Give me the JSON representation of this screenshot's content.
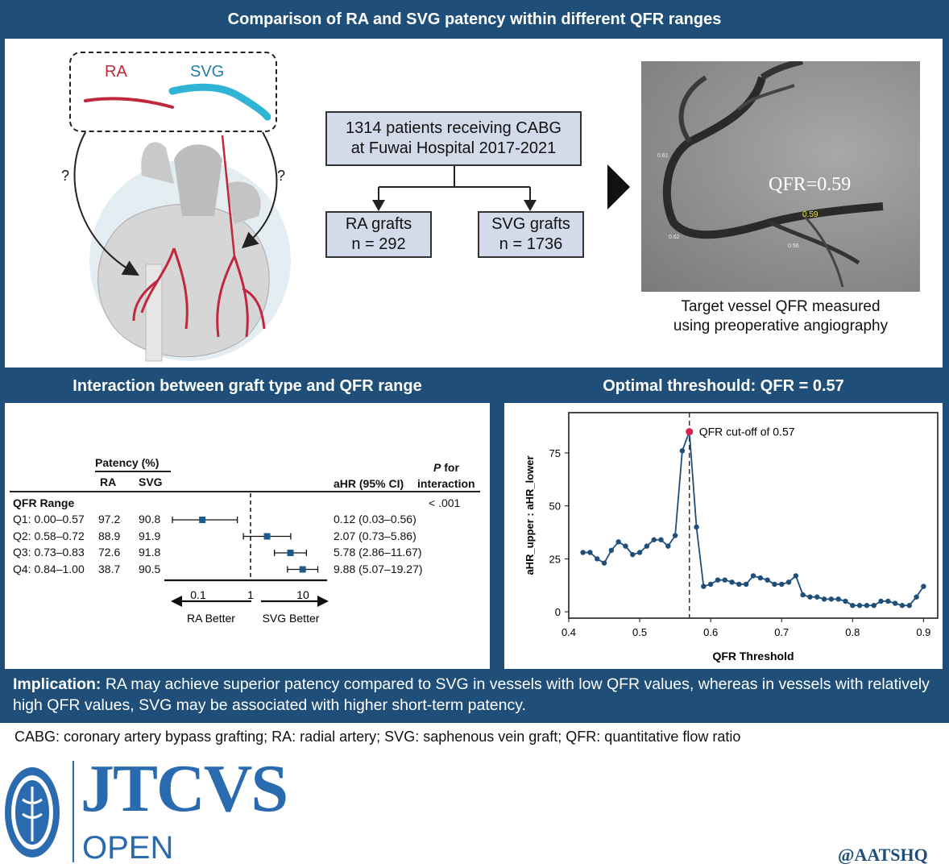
{
  "top_banner": {
    "title": "Comparison of RA and SVG patency within different QFR ranges"
  },
  "graft_legend": {
    "ra": "RA",
    "svg": "SVG",
    "question_left": "?",
    "question_right": "?"
  },
  "flowchart": {
    "root_line1": "1314 patients receiving CABG",
    "root_line2": "at Fuwai Hospital 2017-2021",
    "left_line1": "RA grafts",
    "left_line2": "n = 292",
    "right_line1": "SVG grafts",
    "right_line2": "n = 1736"
  },
  "angiogram": {
    "qfr_label": "QFR=0.59",
    "small_labels": [
      "0.59",
      "0.62",
      "0.56",
      "0.61"
    ],
    "caption_line1": "Target vessel QFR measured",
    "caption_line2": "using preoperative angiography"
  },
  "left_panel": {
    "title": "Interaction between graft type and QFR range",
    "forest": {
      "patency_header": "Patency (%)",
      "col_ra": "RA",
      "col_svg": "SVG",
      "col_ahr": "aHR (95% CI)",
      "col_p_italic": "P",
      "col_p_rest": " for",
      "col_p_line2": "interaction",
      "section": "QFR Range",
      "p_value": "< .001",
      "rows": [
        {
          "label": "Q1: 0.00–0.57",
          "ra": "97.2",
          "svg": "90.8",
          "ahr_text": "0.12 (0.03–0.56)",
          "hr": 0.12,
          "lo": 0.03,
          "hi": 0.56
        },
        {
          "label": "Q2: 0.58–0.72",
          "ra": "88.9",
          "svg": "91.9",
          "ahr_text": "2.07 (0.73–5.86)",
          "hr": 2.07,
          "lo": 0.73,
          "hi": 5.86
        },
        {
          "label": "Q3: 0.73–0.83",
          "ra": "72.6",
          "svg": "91.8",
          "ahr_text": "5.78 (2.86–11.67)",
          "hr": 5.78,
          "lo": 2.86,
          "hi": 11.67
        },
        {
          "label": "Q4: 0.84–1.00",
          "ra": "38.7",
          "svg": "90.5",
          "ahr_text": "9.88 (5.07–19.27)",
          "hr": 9.88,
          "lo": 5.07,
          "hi": 19.27
        }
      ],
      "axis_ticks": [
        {
          "value": 0.1,
          "label": "0.1"
        },
        {
          "value": 1,
          "label": "1"
        },
        {
          "value": 10,
          "label": "10"
        }
      ],
      "ra_better": "RA Better",
      "svg_better": "SVG Better"
    }
  },
  "right_panel": {
    "title": "Optimal threshould: QFR = 0.57"
  },
  "chart_data": {
    "type": "line",
    "xlabel": "QFR Threshold",
    "ylabel": "aHR_upper : aHR_lower",
    "xlim": [
      0.4,
      0.92
    ],
    "ylim": [
      -3,
      94
    ],
    "xticks": [
      0.4,
      0.5,
      0.6,
      0.7,
      0.8,
      0.9
    ],
    "xtick_labels": [
      "0.4",
      "0.5",
      "0.6",
      "0.7",
      "0.8",
      "0.9"
    ],
    "yticks": [
      0,
      25,
      50,
      75
    ],
    "ytick_labels": [
      "0",
      "25",
      "50",
      "75"
    ],
    "cutoff_x": 0.57,
    "cutoff_y": 85,
    "cutoff_label": "QFR cut-off of 0.57",
    "line_color": "#1f4e79",
    "highlight_color": "#d6204f",
    "x": [
      0.42,
      0.43,
      0.44,
      0.45,
      0.46,
      0.47,
      0.48,
      0.49,
      0.5,
      0.51,
      0.52,
      0.53,
      0.54,
      0.55,
      0.56,
      0.57,
      0.58,
      0.59,
      0.6,
      0.61,
      0.62,
      0.63,
      0.64,
      0.65,
      0.66,
      0.67,
      0.68,
      0.69,
      0.7,
      0.71,
      0.72,
      0.73,
      0.74,
      0.75,
      0.76,
      0.77,
      0.78,
      0.79,
      0.8,
      0.81,
      0.82,
      0.83,
      0.84,
      0.85,
      0.86,
      0.87,
      0.88,
      0.89,
      0.9
    ],
    "y": [
      28,
      28,
      25,
      23,
      29,
      33,
      31,
      27,
      28,
      31,
      34,
      34,
      31,
      36,
      76,
      85,
      40,
      12,
      13,
      15,
      15,
      14,
      13,
      13,
      17,
      16,
      15,
      13,
      13,
      14,
      17,
      8,
      7,
      7,
      6,
      6,
      6,
      5,
      3,
      3,
      3,
      3,
      5,
      5,
      4,
      3,
      3,
      7,
      12
    ]
  },
  "implication": {
    "label": "Implication:",
    "text": " RA may achieve superior patency compared to SVG in vessels with low QFR values, whereas in vessels with relatively high QFR values, SVG may be associated with higher short-term patency."
  },
  "footnote": "CABG: coronary artery bypass grafting; RA: radial artery; SVG: saphenous vein graft; QFR: quantitative flow ratio",
  "journal": {
    "name": "JTCVS",
    "sub": "OPEN"
  },
  "handle": "@AATSHQ",
  "colors": {
    "navy": "#1f4e79",
    "ra_red": "#c0283d",
    "svg_cyan": "#2fb4d6",
    "flow_fill": "#d3dbea",
    "marker_blue": "#1f5a8a"
  }
}
